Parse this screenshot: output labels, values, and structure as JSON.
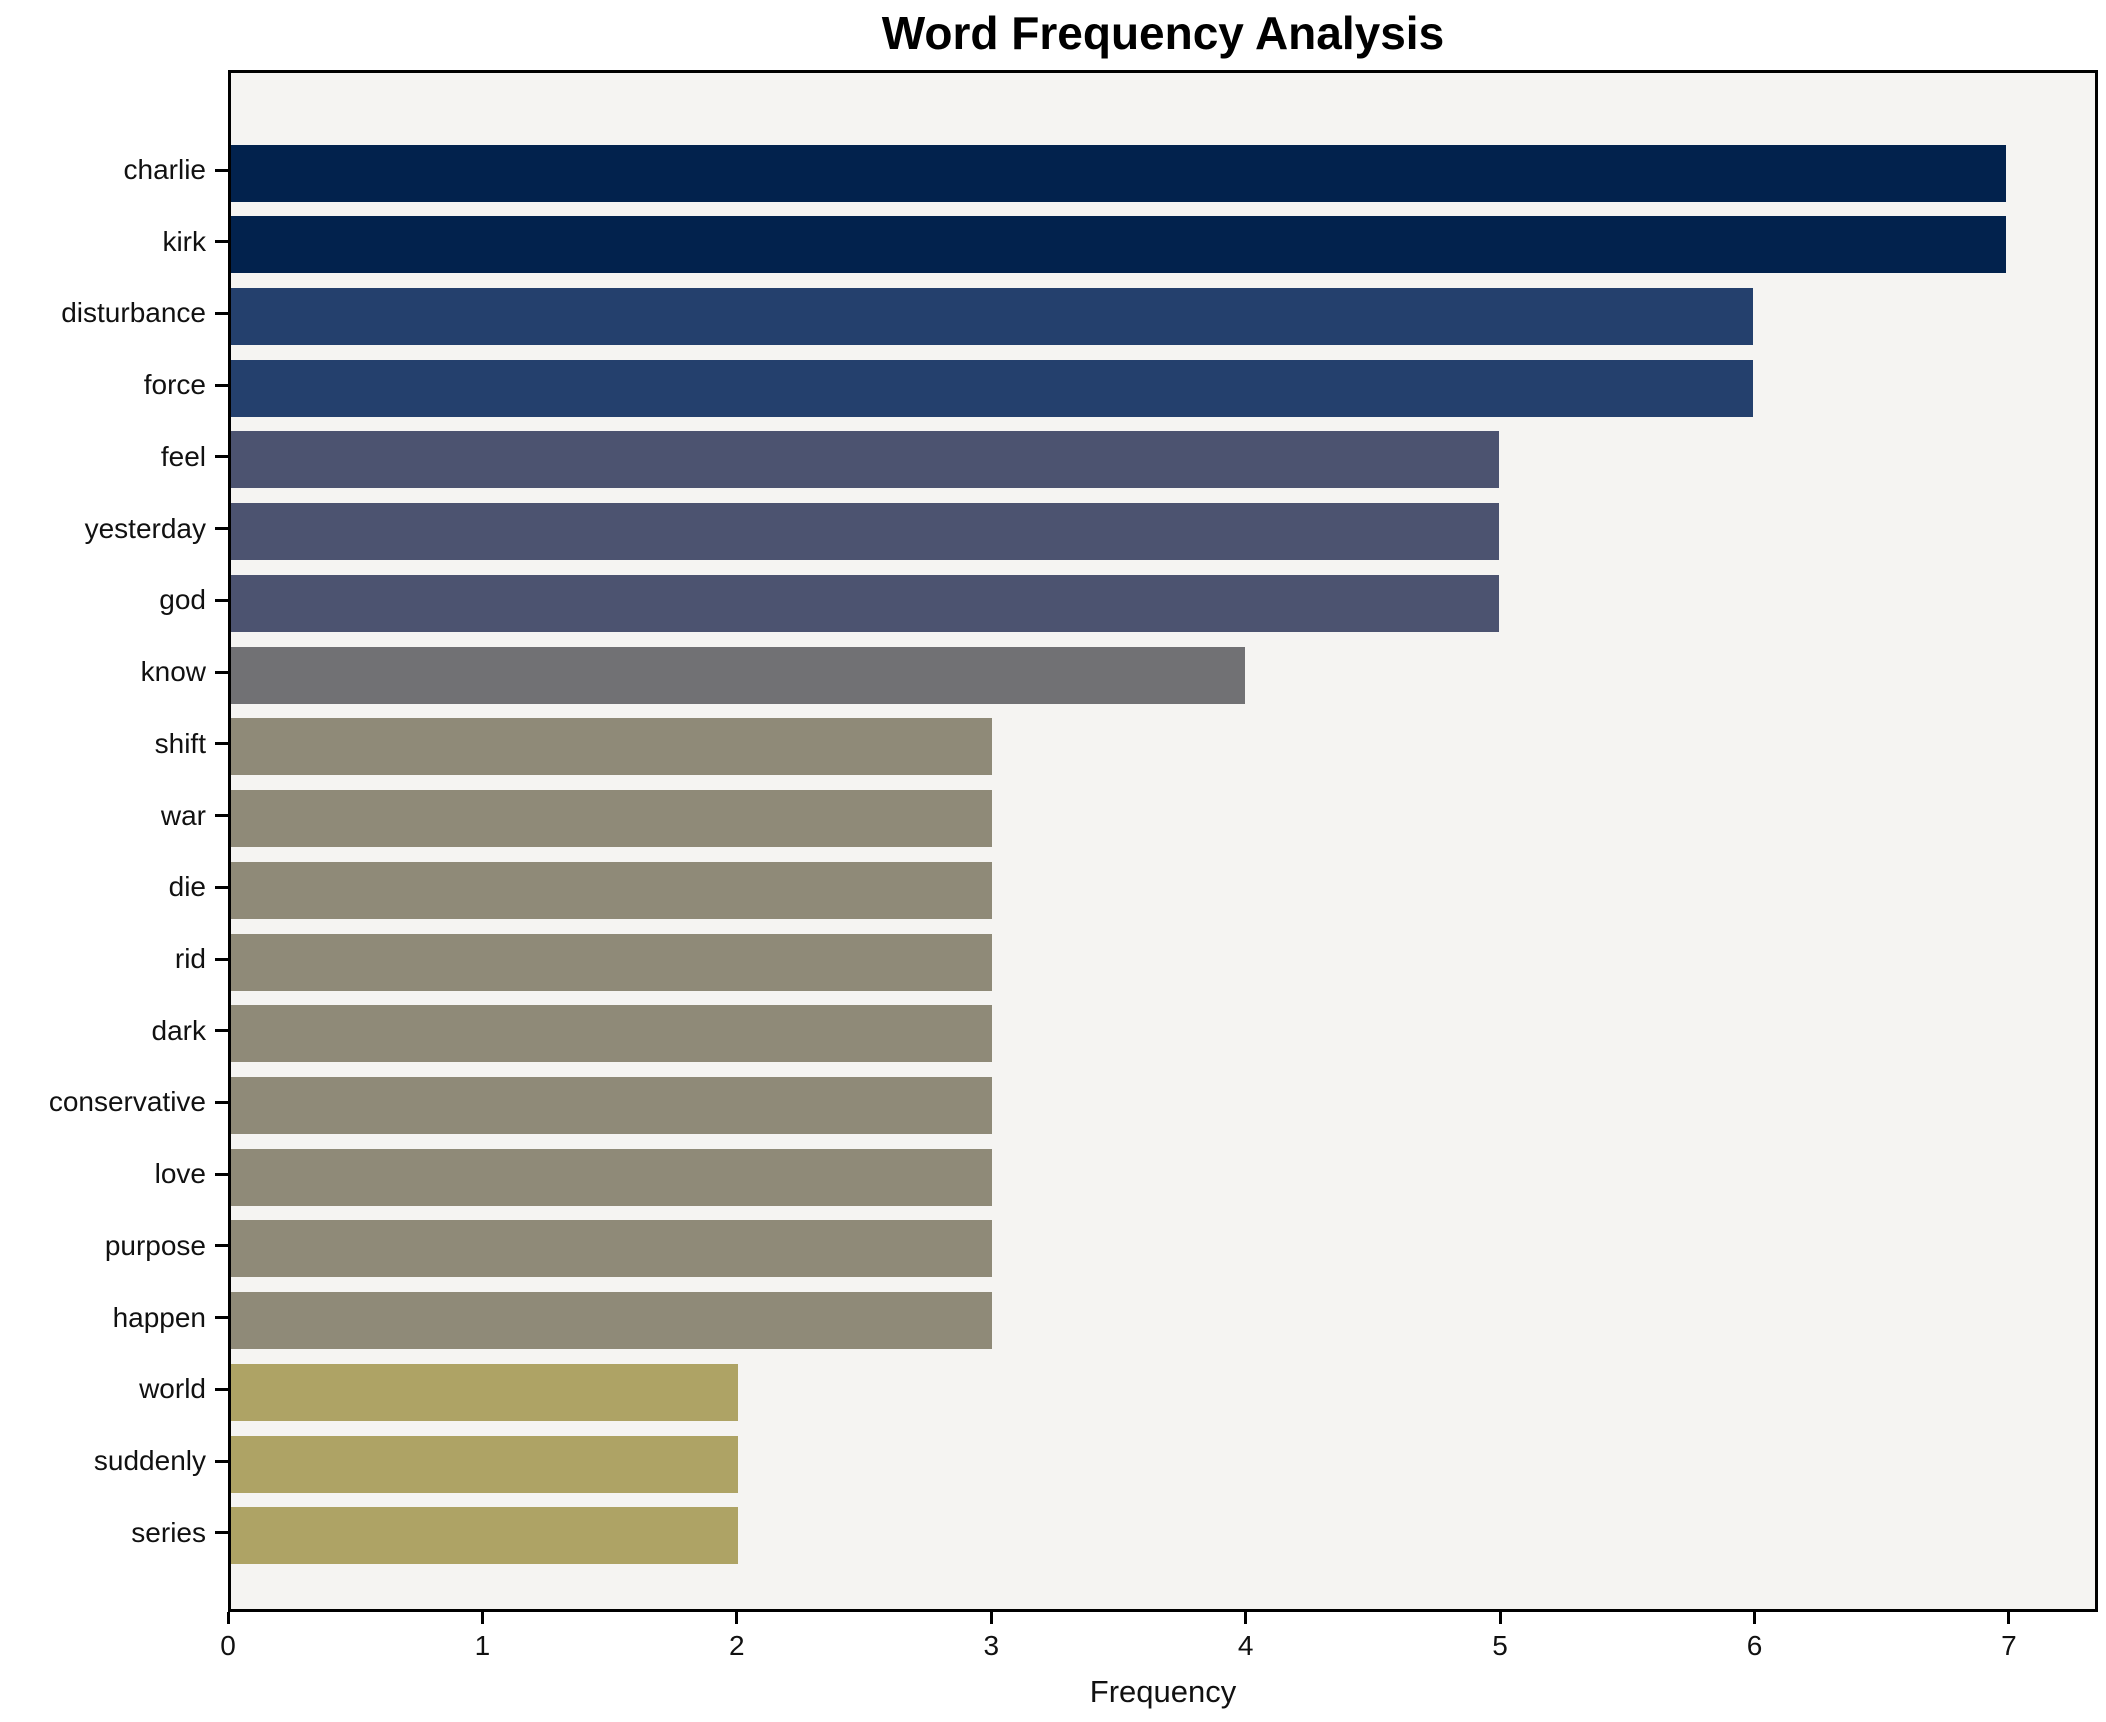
{
  "chart_data": {
    "type": "bar",
    "orientation": "horizontal",
    "title": "Word Frequency Analysis",
    "xlabel": "Frequency",
    "ylabel": "",
    "categories": [
      "charlie",
      "kirk",
      "disturbance",
      "force",
      "feel",
      "yesterday",
      "god",
      "know",
      "shift",
      "war",
      "die",
      "rid",
      "dark",
      "conservative",
      "love",
      "purpose",
      "happen",
      "world",
      "suddenly",
      "series"
    ],
    "values": [
      7,
      7,
      6,
      6,
      5,
      5,
      5,
      4,
      3,
      3,
      3,
      3,
      3,
      3,
      3,
      3,
      3,
      2,
      2,
      2
    ],
    "xlim": [
      0,
      7.35
    ],
    "xticks": [
      0,
      1,
      2,
      3,
      4,
      5,
      6,
      7
    ],
    "grid": false,
    "legend": null,
    "colors_by_value": {
      "7": "#02224d",
      "6": "#24406d",
      "5": "#4c5370",
      "4": "#717174",
      "3": "#8f8a78",
      "2": "#aea365"
    },
    "plot_background": "#f5f4f2",
    "figure_background": "#ffffff",
    "spine_color": "#000000"
  }
}
